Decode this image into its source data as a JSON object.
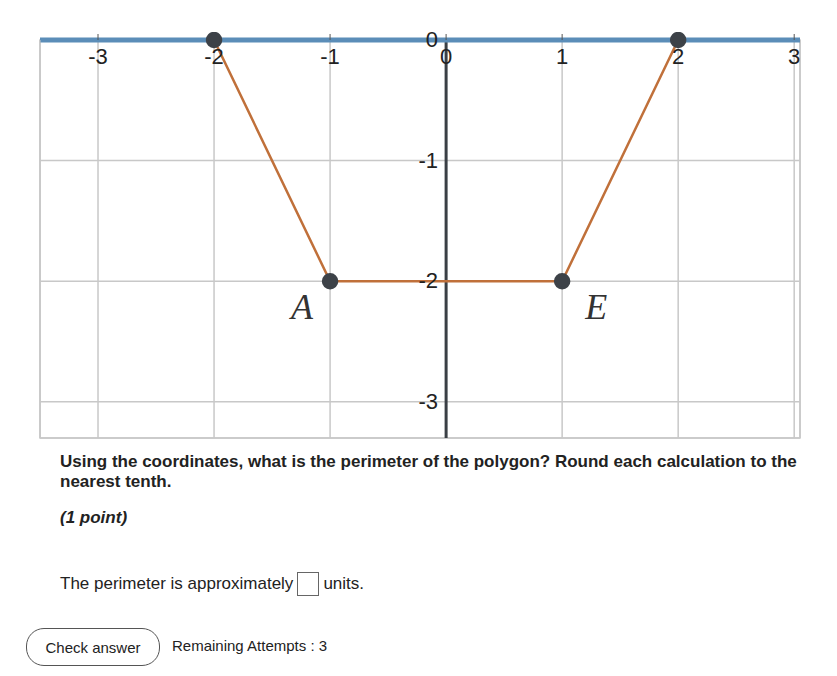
{
  "chart_data": {
    "type": "line",
    "x": [
      -2,
      -1,
      1,
      2
    ],
    "values": [
      0,
      -2,
      -2,
      0
    ],
    "point_labels": [
      null,
      "A",
      "E",
      null
    ],
    "color": "#c0703a",
    "marker": "circle",
    "xlim": [
      -3.5,
      3.05
    ],
    "ylim": [
      -3.3,
      0
    ],
    "xticks": [
      -3,
      -2,
      -1,
      0,
      1,
      2,
      3
    ],
    "yticks": [
      -3,
      -2,
      -1,
      0
    ],
    "grid": true,
    "legend": null
  },
  "question": {
    "prompt": "Using the coordinates, what is the perimeter of the polygon? Round each calculation to the nearest tenth.",
    "points": "(1 point)",
    "answer_before": "The perimeter is approximately",
    "answer_after": "units.",
    "button": "Check answer",
    "attempts": "Remaining Attempts : 3"
  }
}
